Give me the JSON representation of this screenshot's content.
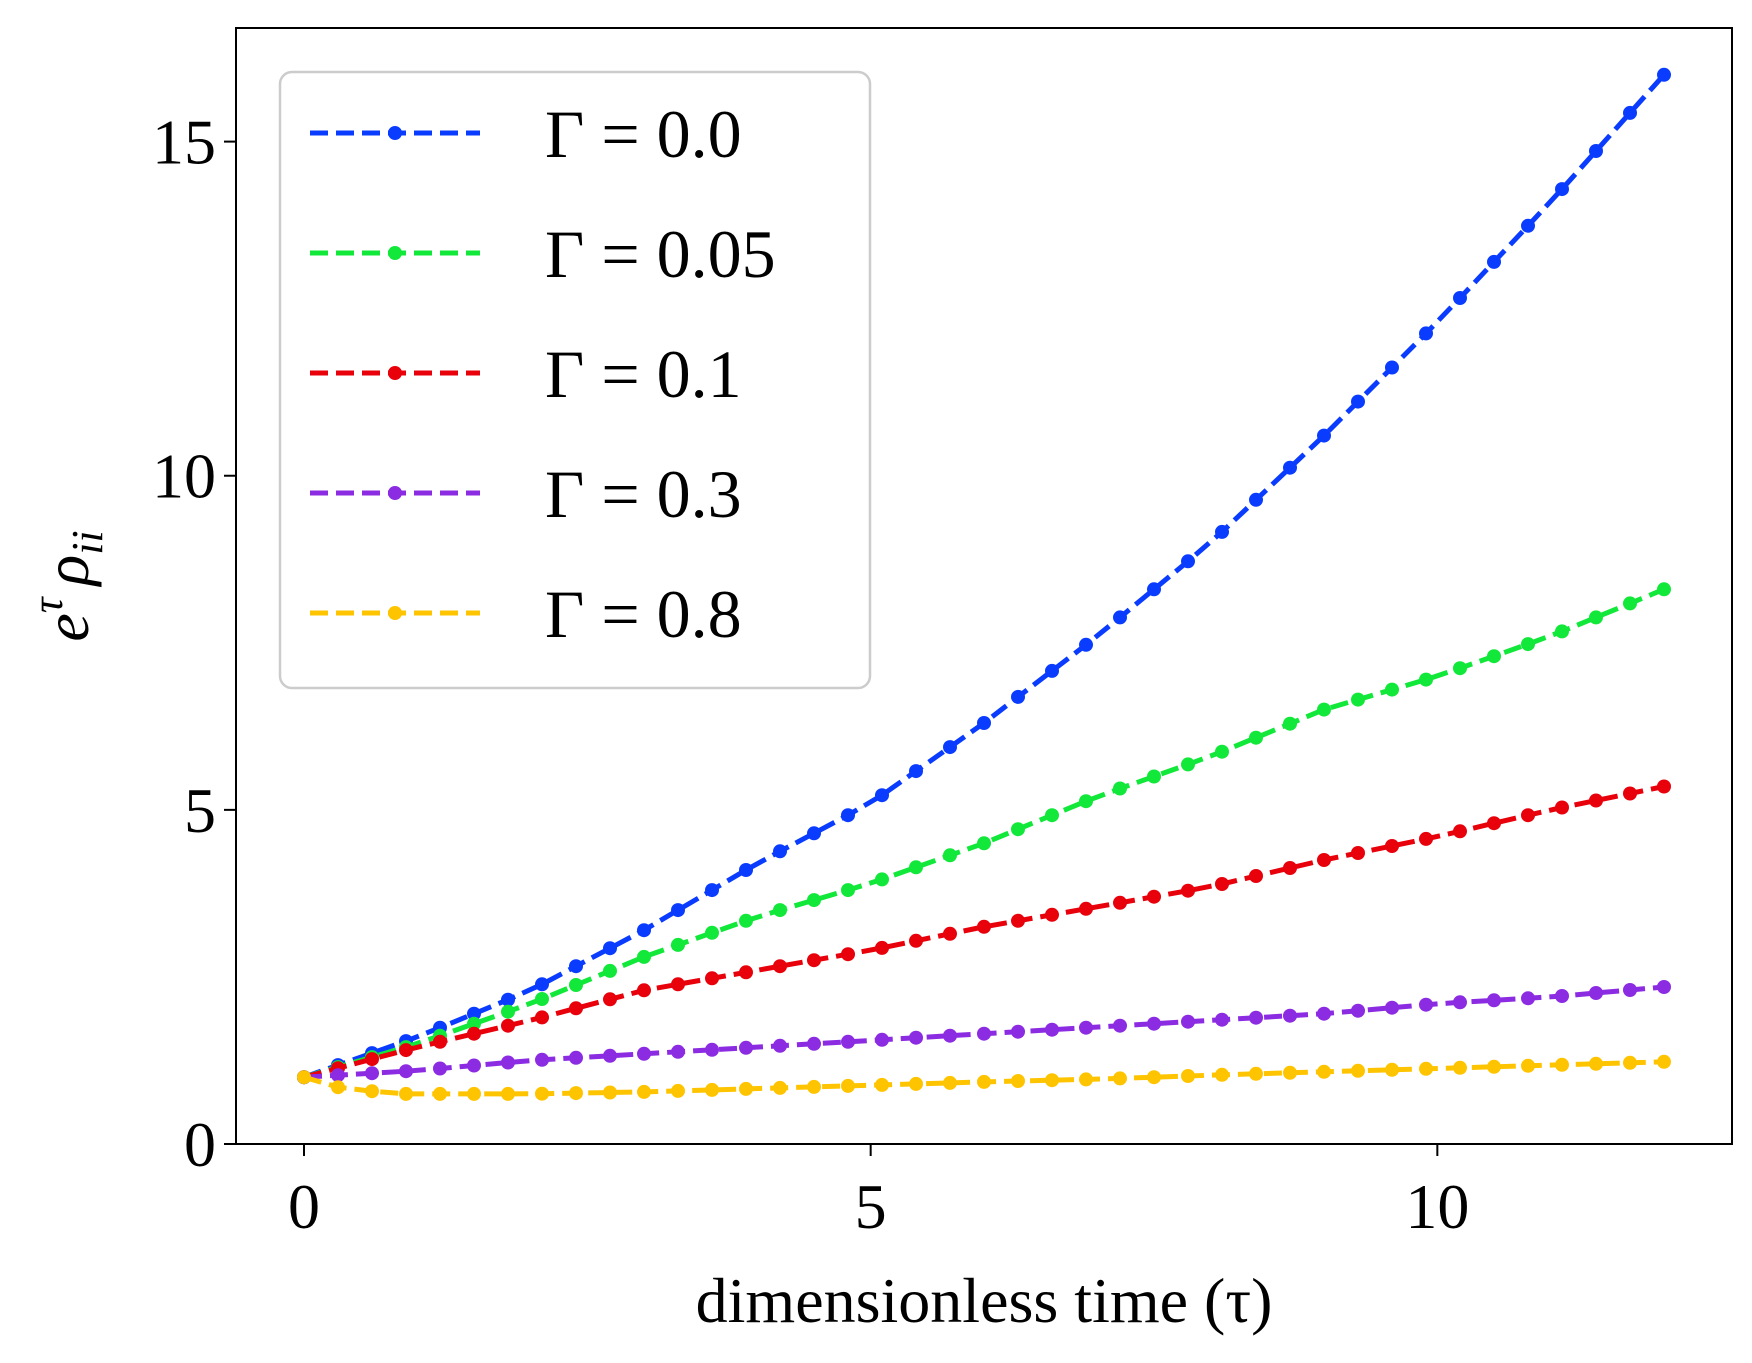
{
  "chart_data": {
    "type": "line",
    "title": "",
    "xlabel": "dimensionless time (τ)",
    "ylabel_base": "e",
    "ylabel_sup": "τ",
    "ylabel_rho": "ρ",
    "ylabel_sub": "ii",
    "xlim": [
      -0.6,
      12.6
    ],
    "ylim": [
      0,
      16.7
    ],
    "xticks": [
      0,
      5,
      10
    ],
    "xtick_labels": [
      "0",
      "5",
      "10"
    ],
    "yticks": [
      0,
      5,
      10,
      15
    ],
    "ytick_labels": [
      "0",
      "5",
      "10",
      "15"
    ],
    "x_start": 0,
    "x_end": 12,
    "num_points": 41,
    "grid": false,
    "legend_position": "upper-left",
    "series": [
      {
        "name": "Γ = 0.0",
        "color": "#0a3cff",
        "anchors": [
          [
            0,
            1.0
          ],
          [
            1,
            1.6
          ],
          [
            2,
            2.3
          ],
          [
            3,
            3.2
          ],
          [
            4,
            4.2
          ],
          [
            5,
            5.1
          ],
          [
            6,
            6.3
          ],
          [
            7,
            7.6
          ],
          [
            8,
            9.0
          ],
          [
            9,
            10.6
          ],
          [
            10,
            12.3
          ],
          [
            11,
            14.1
          ],
          [
            12,
            16.0
          ]
        ]
      },
      {
        "name": "Γ = 0.05",
        "color": "#12e83a",
        "anchors": [
          [
            0,
            1.0
          ],
          [
            1,
            1.5
          ],
          [
            2,
            2.1
          ],
          [
            3,
            2.8
          ],
          [
            4,
            3.4
          ],
          [
            5,
            3.9
          ],
          [
            6,
            4.5
          ],
          [
            7,
            5.2
          ],
          [
            8,
            5.8
          ],
          [
            9,
            6.5
          ],
          [
            10,
            7.0
          ],
          [
            11,
            7.6
          ],
          [
            12,
            8.3
          ]
        ]
      },
      {
        "name": "Γ = 0.1",
        "color": "#e8000b",
        "anchors": [
          [
            0,
            1.0
          ],
          [
            1,
            1.45
          ],
          [
            2,
            1.85
          ],
          [
            3,
            2.3
          ],
          [
            4,
            2.6
          ],
          [
            5,
            2.9
          ],
          [
            6,
            3.25
          ],
          [
            7,
            3.55
          ],
          [
            8,
            3.85
          ],
          [
            9,
            4.25
          ],
          [
            10,
            4.6
          ],
          [
            11,
            5.0
          ],
          [
            12,
            5.35
          ]
        ]
      },
      {
        "name": "Γ = 0.3",
        "color": "#8b2be2",
        "anchors": [
          [
            0,
            1.0
          ],
          [
            1,
            1.1
          ],
          [
            2,
            1.25
          ],
          [
            3,
            1.35
          ],
          [
            4,
            1.45
          ],
          [
            5,
            1.55
          ],
          [
            6,
            1.65
          ],
          [
            7,
            1.75
          ],
          [
            8,
            1.85
          ],
          [
            9,
            1.95
          ],
          [
            10,
            2.1
          ],
          [
            11,
            2.2
          ],
          [
            12,
            2.35
          ]
        ]
      },
      {
        "name": "Γ = 0.8",
        "color": "#ffc400",
        "anchors": [
          [
            0,
            1.0
          ],
          [
            0.3,
            0.85
          ],
          [
            0.8,
            0.75
          ],
          [
            2,
            0.75
          ],
          [
            3,
            0.78
          ],
          [
            4,
            0.83
          ],
          [
            5,
            0.88
          ],
          [
            6,
            0.93
          ],
          [
            7,
            0.97
          ],
          [
            8,
            1.03
          ],
          [
            9,
            1.08
          ],
          [
            10,
            1.13
          ],
          [
            11,
            1.18
          ],
          [
            12,
            1.23
          ]
        ]
      }
    ]
  }
}
